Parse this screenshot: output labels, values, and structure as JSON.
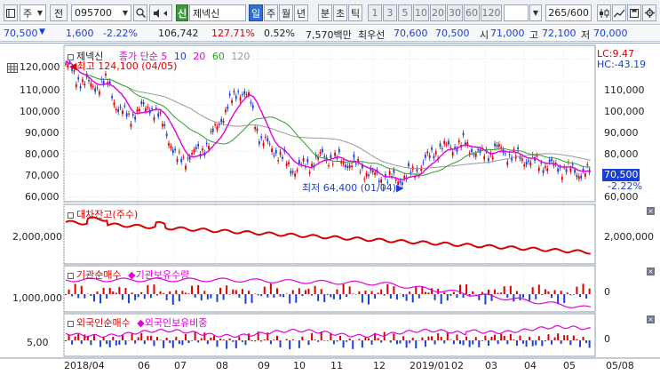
{
  "toolbar": {
    "market_label": "주",
    "prev_label": "전",
    "stock_code": "095700",
    "search_icon": "search-icon",
    "sound_icon": "speaker-icon",
    "new_badge": "신",
    "stock_name": "제넥신",
    "periods": [
      "일",
      "주",
      "월",
      "년",
      "분",
      "초",
      "틱"
    ],
    "active_period": "일",
    "intervals": [
      "1",
      "3",
      "5",
      "10",
      "20",
      "30",
      "60",
      "120"
    ],
    "count_value": "265",
    "count_total": "/600"
  },
  "quote": {
    "price": "70,500",
    "change": "1,600",
    "change_pct": "-2.22%",
    "volume": "106,742",
    "volume_ratio": "127.71%",
    "turnover": "0.52%",
    "amount": "7,570백만",
    "bid_label": "최우선",
    "bid1": "70,600",
    "bid2": "70,500",
    "open_label": "시",
    "open": "71,000",
    "high_label": "고",
    "high": "72,100",
    "low_label": "저",
    "low": "70,000"
  },
  "price_panel": {
    "name": "제넥신",
    "ma_label": "종가 단순",
    "ma_periods": [
      "5",
      "10",
      "20",
      "60",
      "120"
    ],
    "high_note": "최고 124,100 (04/05)",
    "low_note": "최저 64,400 (01/04)",
    "lc": "LC:9.47",
    "hc": "HC:-43.19",
    "current_price": "70,500",
    "current_change": "-2.22%",
    "y_ticks": [
      "120,000",
      "110,000",
      "100,000",
      "90,000",
      "80,000",
      "70,000",
      "60,000"
    ],
    "y_ticks_right": [
      "110,000",
      "100,000",
      "90,000",
      "80,000",
      "60,000"
    ]
  },
  "loan_panel": {
    "title": "대차잔고(주수)",
    "y_tick": "2,000,000"
  },
  "inst_panel": {
    "title_buy": "기관순매수",
    "title_hold": "기관보유수량",
    "y_tick": "1,000,000",
    "y_tick_right": "0"
  },
  "foreign_panel": {
    "title_buy": "외국인순매수",
    "title_hold": "외국인보유비중",
    "y_tick": "5,00",
    "y_tick_right": "0"
  },
  "x_axis": [
    "2018/04",
    "06",
    "07",
    "08",
    "09",
    "10",
    "11",
    "12",
    "2019/01",
    "02",
    "03",
    "04",
    "05",
    "05/08"
  ],
  "colors": {
    "up": "#d80000",
    "down": "#1a3fd6",
    "ma5": "#e000e0",
    "ma10": "#1a3fd6",
    "ma20": "#e000e0",
    "ma60": "#2aa02a",
    "ma120": "#999999",
    "loan": "#d80000"
  }
}
